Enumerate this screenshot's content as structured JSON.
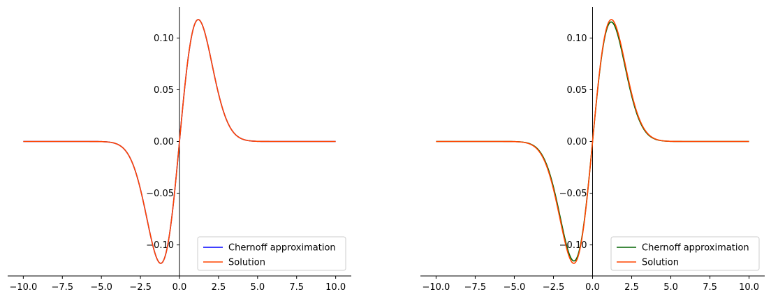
{
  "chart_data": [
    {
      "type": "line",
      "title": "",
      "xlabel": "",
      "ylabel": "",
      "xlim": [
        -11.0,
        11.0
      ],
      "ylim": [
        -0.13,
        0.13
      ],
      "xticks": [
        -10.0,
        -7.5,
        -5.0,
        -2.5,
        0.0,
        2.5,
        5.0,
        7.5,
        10.0
      ],
      "xtick_labels": [
        "−10.0",
        "−7.5",
        "−5.0",
        "−2.5",
        "0.0",
        "2.5",
        "5.0",
        "7.5",
        "10.0"
      ],
      "yticks": [
        -0.1,
        -0.05,
        0.0,
        0.05,
        0.1
      ],
      "ytick_labels": [
        "−0.10",
        "−0.05",
        "0.00",
        "0.05",
        "0.10"
      ],
      "grid": false,
      "legend_position": "lower-right",
      "series": [
        {
          "name": "Chernoff approximation",
          "color": "#0000ff",
          "amplitude": 0.1178,
          "width": 1.2
        },
        {
          "name": "Solution",
          "color": "#ff4500",
          "amplitude": 0.1178,
          "width": 1.2
        }
      ]
    },
    {
      "type": "line",
      "title": "",
      "xlabel": "",
      "ylabel": "",
      "xlim": [
        -11.0,
        11.0
      ],
      "ylim": [
        -0.13,
        0.13
      ],
      "xticks": [
        -10.0,
        -7.5,
        -5.0,
        -2.5,
        0.0,
        2.5,
        5.0,
        7.5,
        10.0
      ],
      "xtick_labels": [
        "−10.0",
        "−7.5",
        "−5.0",
        "−2.5",
        "0.0",
        "2.5",
        "5.0",
        "7.5",
        "10.0"
      ],
      "yticks": [
        -0.1,
        -0.05,
        0.0,
        0.05,
        0.1
      ],
      "ytick_labels": [
        "−0.10",
        "−0.05",
        "0.00",
        "0.05",
        "0.10"
      ],
      "grid": false,
      "legend_position": "lower-right",
      "series": [
        {
          "name": "Chernoff approximation",
          "color": "#006400",
          "amplitude": 0.1155,
          "width": 1.19
        },
        {
          "name": "Solution",
          "color": "#ff4500",
          "amplitude": 0.1178,
          "width": 1.2
        }
      ]
    }
  ]
}
